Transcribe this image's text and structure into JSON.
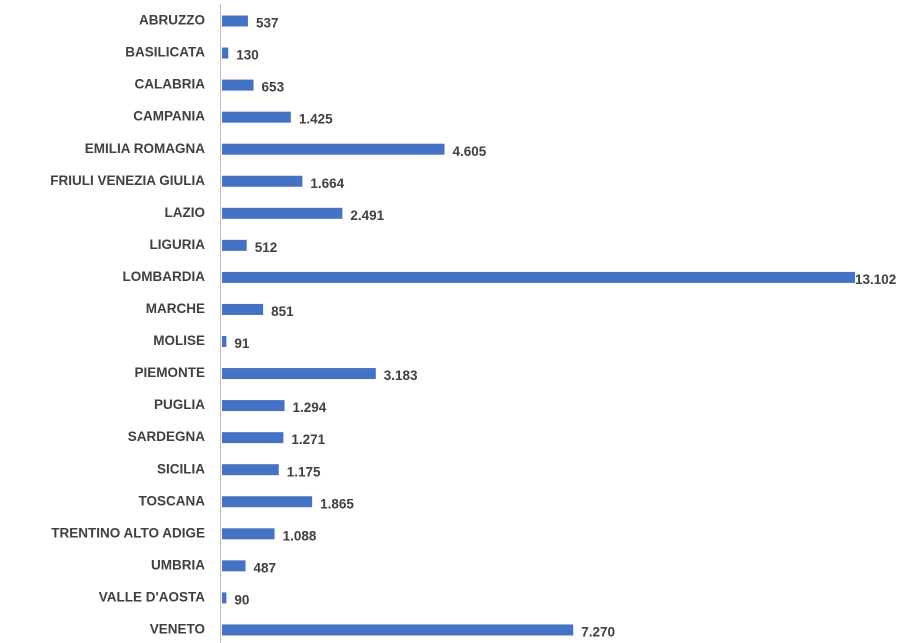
{
  "chart_data": {
    "type": "barh",
    "color": "#4472c4",
    "categories": [
      "ABRUZZO",
      "BASILICATA",
      "CALABRIA",
      "CAMPANIA",
      "EMILIA ROMAGNA",
      "FRIULI VENEZIA GIULIA",
      "LAZIO",
      "LIGURIA",
      "LOMBARDIA",
      "MARCHE",
      "MOLISE",
      "PIEMONTE",
      "PUGLIA",
      "SARDEGNA",
      "SICILIA",
      "TOSCANA",
      "TRENTINO ALTO ADIGE",
      "UMBRIA",
      "VALLE D'AOSTA",
      "VENETO"
    ],
    "values": [
      537,
      130,
      653,
      1425,
      4605,
      1664,
      2491,
      512,
      13102,
      851,
      91,
      3183,
      1294,
      1271,
      1175,
      1865,
      1088,
      487,
      90,
      7270
    ],
    "value_labels": [
      "537",
      "130",
      "653",
      "1.425",
      "4.605",
      "1.664",
      "2.491",
      "512",
      "13.102",
      "851",
      "91",
      "3.183",
      "1.294",
      "1.271",
      "1.175",
      "1.865",
      "1.088",
      "487",
      "90",
      "7.270"
    ]
  }
}
